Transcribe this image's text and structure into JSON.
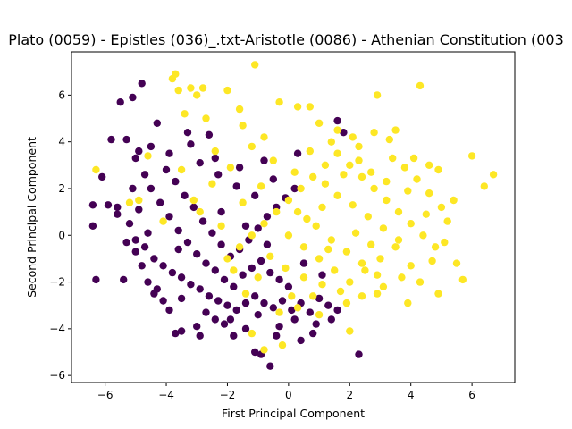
{
  "chart_data": {
    "type": "scatter",
    "title": "Plato (0059) - Epistles (036)_.txt-Aristotle (0086) - Athenian Constitution (003",
    "xlabel": "First Principal Component",
    "ylabel": "Second Principal Component",
    "xlim": [
      -7.1,
      7.4
    ],
    "ylim": [
      -6.3,
      7.85
    ],
    "xticks": [
      -6,
      -4,
      -2,
      0,
      2,
      4,
      6
    ],
    "yticks": [
      -6,
      -4,
      -2,
      0,
      2,
      4,
      6
    ],
    "grid": false,
    "legend": "none",
    "series": [
      {
        "color": "#440154",
        "points": [
          [
            -6.4,
            1.3
          ],
          [
            -6.4,
            0.4
          ],
          [
            -6.3,
            -1.9
          ],
          [
            -6.1,
            2.5
          ],
          [
            -5.9,
            1.3
          ],
          [
            -5.6,
            1.2
          ],
          [
            -5.5,
            5.7
          ],
          [
            -5.4,
            -1.9
          ],
          [
            -5.3,
            4.1
          ],
          [
            -5.1,
            5.9
          ],
          [
            -5.0,
            3.3
          ],
          [
            -5.0,
            -0.7
          ],
          [
            -4.9,
            1.1
          ],
          [
            -4.8,
            6.5
          ],
          [
            -4.7,
            2.6
          ],
          [
            -4.6,
            -2.0
          ],
          [
            -4.5,
            3.8
          ],
          [
            -4.3,
            4.8
          ],
          [
            -4.3,
            -2.3
          ],
          [
            -4.1,
            -2.8
          ],
          [
            -3.9,
            -3.2
          ],
          [
            -3.7,
            -4.2
          ],
          [
            -3.5,
            -4.1
          ],
          [
            -3.3,
            4.4
          ],
          [
            -2.9,
            -4.3
          ],
          [
            -2.6,
            4.3
          ],
          [
            -2.4,
            -3.6
          ],
          [
            -2.1,
            -3.8
          ],
          [
            -1.8,
            -4.3
          ],
          [
            -1.4,
            -4.0
          ],
          [
            -1.1,
            -5.0
          ],
          [
            -0.9,
            -5.1
          ],
          [
            -0.6,
            -5.6
          ],
          [
            -0.3,
            -3.9
          ],
          [
            0.4,
            -4.5
          ],
          [
            0.8,
            -4.2
          ],
          [
            1.4,
            -3.6
          ],
          [
            1.8,
            4.4
          ],
          [
            2.3,
            -5.1
          ],
          [
            1.6,
            4.9
          ],
          [
            -5.6,
            0.9
          ],
          [
            -5.2,
            0.5
          ],
          [
            -5.0,
            -0.2
          ],
          [
            -4.7,
            -0.5
          ],
          [
            -4.4,
            -1.0
          ],
          [
            -4.1,
            -1.3
          ],
          [
            -3.8,
            -1.6
          ],
          [
            -3.5,
            -1.8
          ],
          [
            -3.2,
            -2.1
          ],
          [
            -2.9,
            -2.3
          ],
          [
            -2.6,
            -2.6
          ],
          [
            -2.3,
            -2.8
          ],
          [
            -2.0,
            -3.0
          ],
          [
            -1.7,
            -3.2
          ],
          [
            -1.4,
            -2.9
          ],
          [
            -1.1,
            -2.6
          ],
          [
            -0.8,
            -2.9
          ],
          [
            -0.5,
            -3.1
          ],
          [
            -0.2,
            -2.8
          ],
          [
            0.1,
            -3.2
          ],
          [
            0.4,
            -2.9
          ],
          [
            0.7,
            -3.3
          ],
          [
            1.0,
            -2.7
          ],
          [
            1.3,
            -3.0
          ],
          [
            -4.5,
            2.0
          ],
          [
            -4.2,
            1.4
          ],
          [
            -3.9,
            0.8
          ],
          [
            -3.6,
            0.2
          ],
          [
            -3.3,
            -0.3
          ],
          [
            -3.0,
            -0.8
          ],
          [
            -2.7,
            -1.2
          ],
          [
            -2.4,
            -1.5
          ],
          [
            -2.1,
            -1.9
          ],
          [
            -1.8,
            -2.2
          ],
          [
            -1.5,
            -1.7
          ],
          [
            -1.2,
            -1.4
          ],
          [
            -0.9,
            -1.1
          ],
          [
            -0.6,
            -1.6
          ],
          [
            -0.3,
            -1.9
          ],
          [
            0.0,
            -2.2
          ],
          [
            -4.0,
            2.8
          ],
          [
            -3.7,
            2.3
          ],
          [
            -3.4,
            1.7
          ],
          [
            -3.1,
            1.2
          ],
          [
            -2.8,
            0.6
          ],
          [
            -2.5,
            0.1
          ],
          [
            -2.2,
            -0.4
          ],
          [
            -1.9,
            -0.9
          ],
          [
            -1.6,
            -0.6
          ],
          [
            -1.3,
            -0.2
          ],
          [
            -1.0,
            0.3
          ],
          [
            -0.7,
            0.8
          ],
          [
            -0.4,
            1.2
          ],
          [
            -0.1,
            1.6
          ],
          [
            0.2,
            2.0
          ],
          [
            -2.9,
            3.1
          ],
          [
            -2.3,
            2.6
          ],
          [
            -1.7,
            2.1
          ],
          [
            -1.1,
            1.7
          ],
          [
            -0.5,
            2.4
          ],
          [
            -4.6,
            0.1
          ],
          [
            -5.3,
            -0.3
          ],
          [
            -3.5,
            -2.7
          ],
          [
            -2.7,
            -3.3
          ],
          [
            -1.9,
            -3.6
          ],
          [
            -1.0,
            -3.4
          ],
          [
            0.2,
            -3.6
          ],
          [
            0.9,
            -3.8
          ],
          [
            1.6,
            -3.2
          ],
          [
            -0.4,
            -4.3
          ],
          [
            -3.0,
            -3.9
          ],
          [
            -4.4,
            -2.5
          ],
          [
            -5.8,
            4.1
          ],
          [
            -4.9,
            3.6
          ],
          [
            -3.9,
            3.5
          ],
          [
            -3.2,
            3.9
          ],
          [
            -2.4,
            3.3
          ],
          [
            -1.6,
            2.9
          ],
          [
            -0.8,
            3.2
          ],
          [
            0.3,
            3.5
          ],
          [
            -4.8,
            -1.3
          ],
          [
            -5.1,
            2.0
          ],
          [
            -3.6,
            -0.6
          ],
          [
            -2.2,
            1.0
          ],
          [
            -1.4,
            0.4
          ],
          [
            -0.7,
            -0.4
          ],
          [
            0.5,
            -1.2
          ],
          [
            1.1,
            -1.7
          ]
        ]
      },
      {
        "color": "#fde725",
        "points": [
          [
            -6.3,
            2.8
          ],
          [
            -5.2,
            1.4
          ],
          [
            -4.9,
            1.5
          ],
          [
            -4.6,
            3.4
          ],
          [
            -4.1,
            0.6
          ],
          [
            -3.8,
            6.7
          ],
          [
            -3.7,
            6.9
          ],
          [
            -3.6,
            6.2
          ],
          [
            -3.4,
            5.2
          ],
          [
            -3.2,
            6.3
          ],
          [
            -3.0,
            6.0
          ],
          [
            -2.8,
            6.3
          ],
          [
            -2.7,
            5.0
          ],
          [
            -2.4,
            3.6
          ],
          [
            -2.0,
            6.2
          ],
          [
            -1.6,
            5.4
          ],
          [
            -1.1,
            7.3
          ],
          [
            -1.5,
            4.7
          ],
          [
            -0.8,
            4.2
          ],
          [
            -0.3,
            5.7
          ],
          [
            0.3,
            5.5
          ],
          [
            0.7,
            5.5
          ],
          [
            1.0,
            4.8
          ],
          [
            1.6,
            4.5
          ],
          [
            2.3,
            3.8
          ],
          [
            2.9,
            6.0
          ],
          [
            3.3,
            4.1
          ],
          [
            3.5,
            4.5
          ],
          [
            4.1,
            3.3
          ],
          [
            4.3,
            6.4
          ],
          [
            4.6,
            3.0
          ],
          [
            4.9,
            2.8
          ],
          [
            5.4,
            1.5
          ],
          [
            5.7,
            -1.9
          ],
          [
            5.5,
            -1.2
          ],
          [
            6.0,
            3.4
          ],
          [
            6.4,
            2.1
          ],
          [
            6.7,
            2.6
          ],
          [
            4.9,
            -2.5
          ],
          [
            3.9,
            -2.9
          ],
          [
            2.9,
            -2.5
          ],
          [
            1.9,
            -2.9
          ],
          [
            1.0,
            -3.4
          ],
          [
            0.3,
            -3.1
          ],
          [
            -0.2,
            -4.7
          ],
          [
            -0.8,
            -4.9
          ],
          [
            -1.2,
            -4.2
          ],
          [
            2.0,
            -4.1
          ],
          [
            -2.0,
            -1.0
          ],
          [
            -1.6,
            -0.5
          ],
          [
            -1.2,
            0.0
          ],
          [
            -0.8,
            0.5
          ],
          [
            -0.4,
            1.0
          ],
          [
            0.0,
            1.5
          ],
          [
            0.4,
            2.0
          ],
          [
            0.8,
            2.5
          ],
          [
            1.2,
            3.0
          ],
          [
            1.6,
            3.5
          ],
          [
            2.0,
            3.0
          ],
          [
            2.4,
            2.5
          ],
          [
            2.8,
            2.0
          ],
          [
            3.2,
            1.5
          ],
          [
            3.6,
            1.0
          ],
          [
            4.0,
            0.5
          ],
          [
            4.4,
            0.0
          ],
          [
            4.8,
            -0.5
          ],
          [
            5.2,
            0.6
          ],
          [
            5.0,
            1.2
          ],
          [
            4.6,
            1.8
          ],
          [
            4.2,
            2.4
          ],
          [
            3.8,
            2.9
          ],
          [
            3.4,
            3.3
          ],
          [
            0.0,
            0.0
          ],
          [
            0.5,
            -0.5
          ],
          [
            1.0,
            -1.0
          ],
          [
            1.5,
            -1.5
          ],
          [
            2.0,
            -2.0
          ],
          [
            2.5,
            -1.5
          ],
          [
            3.0,
            -1.0
          ],
          [
            3.5,
            -0.5
          ],
          [
            4.0,
            -1.3
          ],
          [
            4.3,
            -2.0
          ],
          [
            3.7,
            -1.8
          ],
          [
            3.1,
            -2.2
          ],
          [
            2.4,
            -2.6
          ],
          [
            1.7,
            -2.4
          ],
          [
            1.1,
            -2.1
          ],
          [
            0.5,
            -1.8
          ],
          [
            -0.1,
            -1.4
          ],
          [
            -0.6,
            -0.9
          ],
          [
            -1.0,
            -1.8
          ],
          [
            -1.4,
            -2.5
          ],
          [
            -1.8,
            -1.5
          ],
          [
            0.6,
            0.7
          ],
          [
            1.1,
            1.2
          ],
          [
            1.6,
            1.7
          ],
          [
            2.1,
            1.3
          ],
          [
            2.6,
            0.8
          ],
          [
            3.1,
            0.3
          ],
          [
            3.6,
            -0.2
          ],
          [
            0.3,
            1.0
          ],
          [
            0.9,
            0.4
          ],
          [
            1.4,
            -0.2
          ],
          [
            1.9,
            -0.7
          ],
          [
            2.4,
            -1.2
          ],
          [
            2.9,
            -1.7
          ],
          [
            1.2,
            2.2
          ],
          [
            1.8,
            2.6
          ],
          [
            2.3,
            3.2
          ],
          [
            2.7,
            2.7
          ],
          [
            3.2,
            2.3
          ],
          [
            0.2,
            2.7
          ],
          [
            -0.5,
            3.2
          ],
          [
            -1.2,
            3.8
          ],
          [
            -1.9,
            2.9
          ],
          [
            -2.5,
            2.2
          ],
          [
            -3.1,
            1.5
          ],
          [
            -3.5,
            2.8
          ],
          [
            -2.9,
            1.0
          ],
          [
            -2.2,
            0.4
          ],
          [
            -1.5,
            1.4
          ],
          [
            -0.9,
            2.1
          ],
          [
            0.7,
            3.6
          ],
          [
            1.4,
            4.0
          ],
          [
            2.1,
            4.2
          ],
          [
            2.8,
            4.4
          ],
          [
            3.9,
            1.9
          ],
          [
            4.5,
            0.9
          ],
          [
            5.1,
            -0.3
          ],
          [
            4.7,
            -1.1
          ],
          [
            0.1,
            -2.6
          ],
          [
            -0.3,
            -3.3
          ],
          [
            0.8,
            -2.6
          ],
          [
            1.3,
            -0.6
          ],
          [
            2.2,
            0.1
          ],
          [
            2.7,
            -0.4
          ]
        ]
      }
    ]
  }
}
